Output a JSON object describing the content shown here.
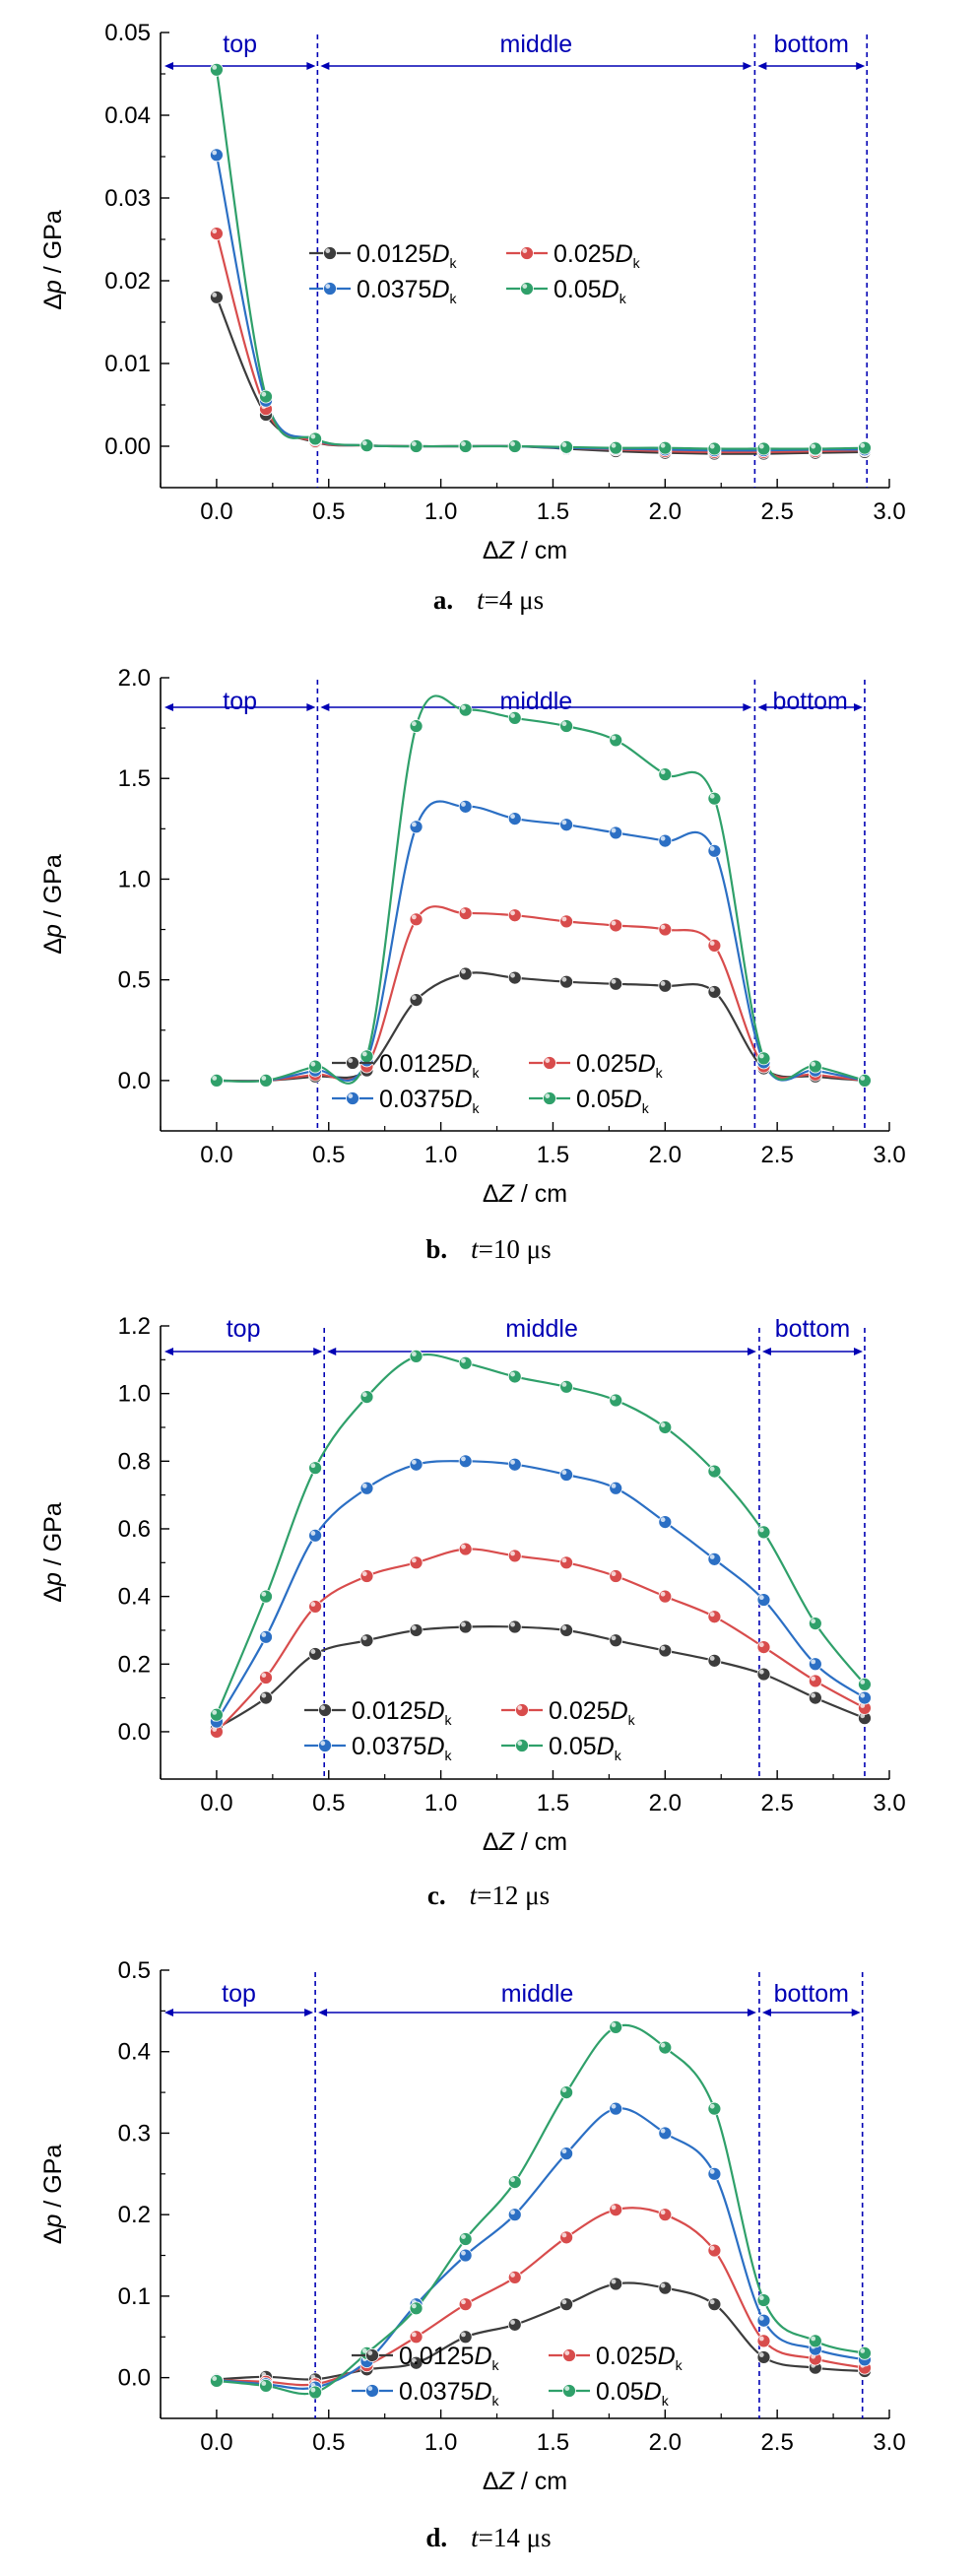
{
  "colors": {
    "series": [
      "#3c3c3c",
      "#d84c4c",
      "#2b6fc4",
      "#2fa06a"
    ],
    "annotation": "#0000b4",
    "axis": "#000000"
  },
  "axis_labels": {
    "ylabel_delta": "Δ",
    "ylabel_var": "p",
    "ylabel_unit": " / GPa",
    "xlabel_delta": "Δ",
    "xlabel_var": "Z",
    "xlabel_unit": " / cm"
  },
  "region_labels": {
    "top": "top",
    "middle": "middle",
    "bottom": "bottom"
  },
  "legend_entries": [
    {
      "num": "0.0125",
      "d": "D",
      "sub": "k"
    },
    {
      "num": "0.025",
      "d": "D",
      "sub": "k"
    },
    {
      "num": "0.0375",
      "d": "D",
      "sub": "k"
    },
    {
      "num": "0.05",
      "d": "D",
      "sub": "k"
    }
  ],
  "chart_data": [
    {
      "type": "line",
      "caption_letter": "a.",
      "caption_var": "t",
      "caption_value": "=4 μs",
      "xlim": [
        -0.25,
        3.0
      ],
      "ylim": [
        -0.005,
        0.05
      ],
      "xticks": [
        "0.0",
        "0.5",
        "1.0",
        "1.5",
        "2.0",
        "2.5",
        "3.0"
      ],
      "yticks": [
        "0.00",
        "0.01",
        "0.02",
        "0.03",
        "0.04",
        "0.05"
      ],
      "ytick_values": [
        0,
        0.01,
        0.02,
        0.03,
        0.04,
        0.05
      ],
      "region_bounds": [
        0.45,
        2.4,
        2.9
      ],
      "x": [
        0,
        0.22,
        0.44,
        0.67,
        0.89,
        1.11,
        1.33,
        1.56,
        1.78,
        2.0,
        2.22,
        2.44,
        2.67,
        2.89
      ],
      "series": [
        {
          "values": [
            0.018,
            0.0038,
            0.0005,
            0.0001,
            0,
            0,
            0,
            -0.0003,
            -0.0006,
            -0.0008,
            -0.0009,
            -0.0009,
            -0.0008,
            -0.0007
          ]
        },
        {
          "values": [
            0.0257,
            0.0045,
            0.0006,
            0.0001,
            0,
            0,
            0,
            -0.0002,
            -0.0004,
            -0.0006,
            -0.0007,
            -0.0007,
            -0.0006,
            -0.0005
          ]
        },
        {
          "values": [
            0.0352,
            0.0055,
            0.0008,
            0.0001,
            0,
            0,
            0,
            -0.0002,
            -0.0003,
            -0.0004,
            -0.0005,
            -0.0005,
            -0.0004,
            -0.0004
          ]
        },
        {
          "values": [
            0.0455,
            0.006,
            0.0009,
            0.0001,
            0,
            0,
            0,
            -0.0001,
            -0.0002,
            -0.0002,
            -0.0003,
            -0.0003,
            -0.0003,
            -0.0002
          ]
        }
      ]
    },
    {
      "type": "line",
      "caption_letter": "b.",
      "caption_var": "t",
      "caption_value": "=10 μs",
      "xlim": [
        -0.25,
        3.0
      ],
      "ylim": [
        -0.25,
        2.0
      ],
      "xticks": [
        "0.0",
        "0.5",
        "1.0",
        "1.5",
        "2.0",
        "2.5",
        "3.0"
      ],
      "yticks": [
        "0.0",
        "0.5",
        "1.0",
        "1.5",
        "2.0"
      ],
      "ytick_values": [
        0,
        0.5,
        1.0,
        1.5,
        2.0
      ],
      "region_bounds": [
        0.45,
        2.4,
        2.89
      ],
      "x": [
        0,
        0.22,
        0.44,
        0.67,
        0.89,
        1.11,
        1.33,
        1.56,
        1.78,
        2.0,
        2.22,
        2.44,
        2.67,
        2.89
      ],
      "series": [
        {
          "values": [
            0,
            0,
            0.02,
            0.05,
            0.4,
            0.53,
            0.51,
            0.49,
            0.48,
            0.47,
            0.44,
            0.06,
            0.02,
            0
          ]
        },
        {
          "values": [
            0,
            0,
            0.03,
            0.07,
            0.8,
            0.83,
            0.82,
            0.79,
            0.77,
            0.75,
            0.67,
            0.07,
            0.03,
            0
          ]
        },
        {
          "values": [
            0,
            0,
            0.05,
            0.1,
            1.26,
            1.36,
            1.3,
            1.27,
            1.23,
            1.19,
            1.14,
            0.09,
            0.05,
            0
          ]
        },
        {
          "values": [
            0,
            0,
            0.07,
            0.12,
            1.76,
            1.84,
            1.8,
            1.76,
            1.69,
            1.52,
            1.4,
            0.11,
            0.07,
            0
          ]
        }
      ]
    },
    {
      "type": "line",
      "caption_letter": "c.",
      "caption_var": "t",
      "caption_value": "=12 μs",
      "xlim": [
        -0.25,
        3.0
      ],
      "ylim": [
        -0.14,
        1.2
      ],
      "xticks": [
        "0.0",
        "0.5",
        "1.0",
        "1.5",
        "2.0",
        "2.5",
        "3.0"
      ],
      "yticks": [
        "0.0",
        "0.2",
        "0.4",
        "0.6",
        "0.8",
        "1.0",
        "1.2"
      ],
      "ytick_values": [
        0,
        0.2,
        0.4,
        0.6,
        0.8,
        1.0,
        1.2
      ],
      "region_bounds": [
        0.48,
        2.42,
        2.89
      ],
      "x": [
        0,
        0.22,
        0.44,
        0.67,
        0.89,
        1.11,
        1.33,
        1.56,
        1.78,
        2.0,
        2.22,
        2.44,
        2.67,
        2.89
      ],
      "series": [
        {
          "values": [
            0.01,
            0.1,
            0.23,
            0.27,
            0.3,
            0.31,
            0.31,
            0.3,
            0.27,
            0.24,
            0.21,
            0.17,
            0.1,
            0.04
          ]
        },
        {
          "values": [
            0,
            0.16,
            0.37,
            0.46,
            0.5,
            0.54,
            0.52,
            0.5,
            0.46,
            0.4,
            0.34,
            0.25,
            0.15,
            0.07
          ]
        },
        {
          "values": [
            0.03,
            0.28,
            0.58,
            0.72,
            0.79,
            0.8,
            0.79,
            0.76,
            0.72,
            0.62,
            0.51,
            0.39,
            0.2,
            0.1
          ]
        },
        {
          "values": [
            0.05,
            0.4,
            0.78,
            0.99,
            1.11,
            1.09,
            1.05,
            1.02,
            0.98,
            0.9,
            0.77,
            0.59,
            0.32,
            0.14
          ]
        }
      ]
    },
    {
      "type": "line",
      "caption_letter": "d.",
      "caption_var": "t",
      "caption_value": "=14 μs",
      "xlim": [
        -0.25,
        3.0
      ],
      "ylim": [
        -0.05,
        0.5
      ],
      "xticks": [
        "0.0",
        "0.5",
        "1.0",
        "1.5",
        "2.0",
        "2.5",
        "3.0"
      ],
      "yticks": [
        "0.0",
        "0.1",
        "0.2",
        "0.3",
        "0.4",
        "0.5"
      ],
      "ytick_values": [
        0,
        0.1,
        0.2,
        0.3,
        0.4,
        0.5
      ],
      "region_bounds": [
        0.44,
        2.42,
        2.88
      ],
      "x": [
        0,
        0.22,
        0.44,
        0.67,
        0.89,
        1.11,
        1.33,
        1.56,
        1.78,
        2.0,
        2.22,
        2.44,
        2.67,
        2.89
      ],
      "series": [
        {
          "values": [
            -0.002,
            0.001,
            -0.002,
            0.01,
            0.018,
            0.05,
            0.065,
            0.09,
            0.115,
            0.11,
            0.09,
            0.025,
            0.012,
            0.008
          ]
        },
        {
          "values": [
            -0.003,
            -0.005,
            -0.008,
            0.015,
            0.05,
            0.09,
            0.123,
            0.172,
            0.206,
            0.2,
            0.156,
            0.045,
            0.023,
            0.012
          ]
        },
        {
          "values": [
            -0.003,
            -0.008,
            -0.012,
            0.02,
            0.09,
            0.15,
            0.2,
            0.275,
            0.33,
            0.3,
            0.25,
            0.07,
            0.035,
            0.022
          ]
        },
        {
          "values": [
            -0.004,
            -0.01,
            -0.018,
            0.03,
            0.085,
            0.17,
            0.24,
            0.35,
            0.43,
            0.405,
            0.33,
            0.095,
            0.045,
            0.03
          ]
        }
      ]
    }
  ]
}
